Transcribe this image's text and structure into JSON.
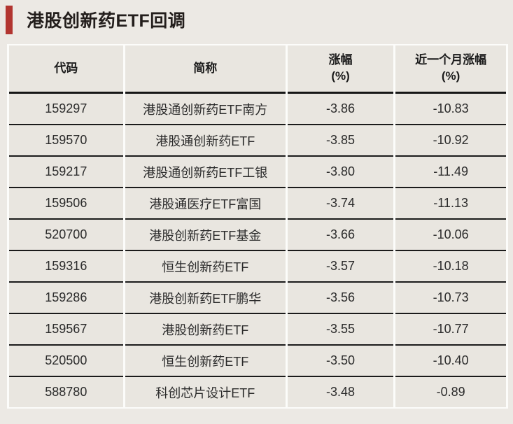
{
  "chart_data": {
    "type": "table",
    "title": "港股创新药ETF回调",
    "columns": [
      {
        "key": "code",
        "label": "代码",
        "sub": ""
      },
      {
        "key": "name",
        "label": "简称",
        "sub": ""
      },
      {
        "key": "change",
        "label": "涨幅",
        "sub": "(%)"
      },
      {
        "key": "month_change",
        "label": "近一个月涨幅",
        "sub": "(%)"
      }
    ],
    "rows": [
      {
        "code": "159297",
        "name": "港股通创新药ETF南方",
        "change": "-3.86",
        "month_change": "-10.83"
      },
      {
        "code": "159570",
        "name": "港股通创新药ETF",
        "change": "-3.85",
        "month_change": "-10.92"
      },
      {
        "code": "159217",
        "name": "港股通创新药ETF工银",
        "change": "-3.80",
        "month_change": "-11.49"
      },
      {
        "code": "159506",
        "name": "港股通医疗ETF富国",
        "change": "-3.74",
        "month_change": "-11.13"
      },
      {
        "code": "520700",
        "name": "港股创新药ETF基金",
        "change": "-3.66",
        "month_change": "-10.06"
      },
      {
        "code": "159316",
        "name": "恒生创新药ETF",
        "change": "-3.57",
        "month_change": "-10.18"
      },
      {
        "code": "159286",
        "name": "港股创新药ETF鹏华",
        "change": "-3.56",
        "month_change": "-10.73"
      },
      {
        "code": "159567",
        "name": "港股创新药ETF",
        "change": "-3.55",
        "month_change": "-10.77"
      },
      {
        "code": "520500",
        "name": "恒生创新药ETF",
        "change": "-3.50",
        "month_change": "-10.40"
      },
      {
        "code": "588780",
        "name": "科创芯片设计ETF",
        "change": "-3.48",
        "month_change": "-0.89"
      }
    ]
  },
  "colors": {
    "accent": "#B23530",
    "page_bg": "#ECE9E4",
    "cell_bg": "#E9E6E0",
    "grid_white": "#FCFCFA",
    "rule_dark": "#1B1B1B",
    "title_text": "#231E1C",
    "body_text": "#2B2B2B"
  }
}
